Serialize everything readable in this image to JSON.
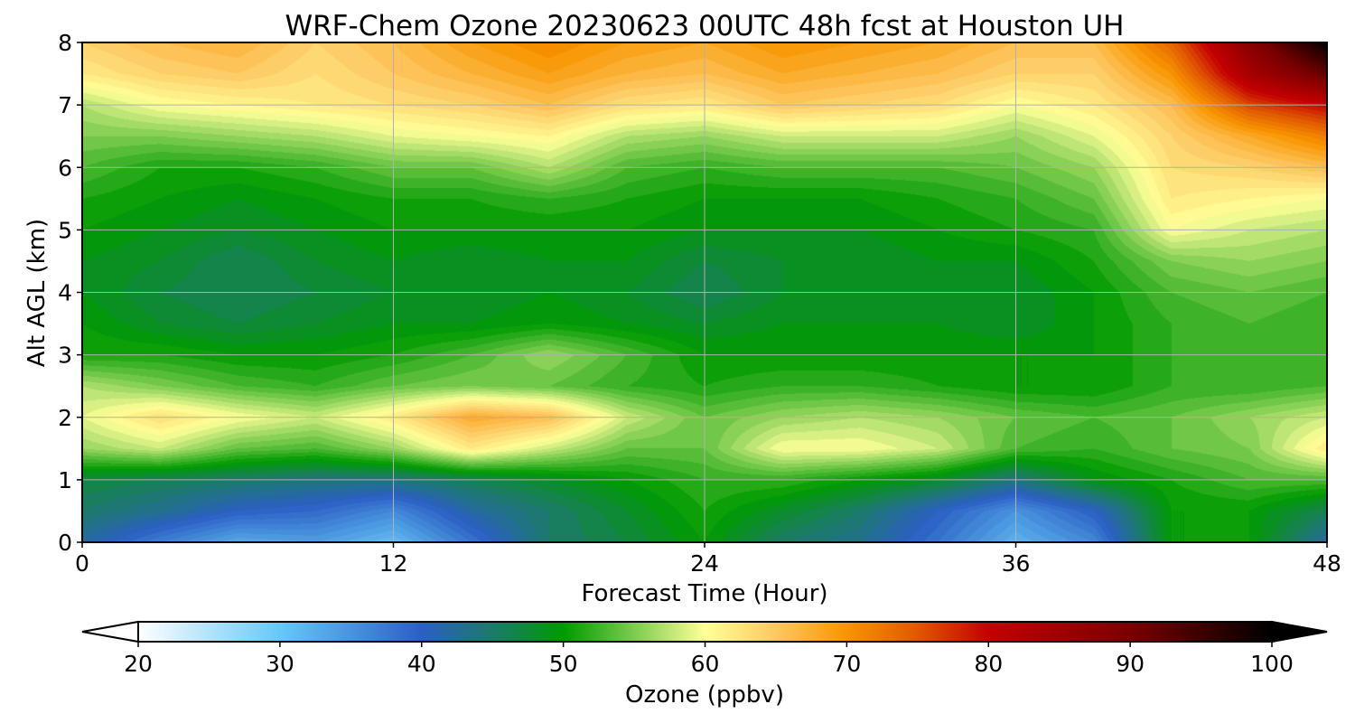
{
  "chart_data": {
    "type": "heatmap",
    "title": "WRF-Chem Ozone  20230623 00UTC 48h fcst at Houston UH",
    "xlabel": "Forecast Time (Hour)",
    "ylabel": "Alt AGL (km)",
    "xlim": [
      0,
      48
    ],
    "ylim": [
      0,
      8
    ],
    "x_ticks": [
      0,
      12,
      24,
      36,
      48
    ],
    "y_ticks": [
      0,
      1,
      2,
      3,
      4,
      5,
      6,
      7,
      8
    ],
    "grid": true,
    "colorbar": {
      "label": "Ozone  (ppbv)",
      "min": 20,
      "max": 100,
      "ticks": [
        20,
        30,
        40,
        50,
        60,
        70,
        80,
        90,
        100
      ],
      "extend": "both",
      "orientation": "horizontal",
      "colors": [
        {
          "value": 20,
          "color": "#ffffff"
        },
        {
          "value": 30,
          "color": "#66c8f8"
        },
        {
          "value": 40,
          "color": "#2b5fc4"
        },
        {
          "value": 45,
          "color": "#1c7a6a"
        },
        {
          "value": 50,
          "color": "#009a00"
        },
        {
          "value": 55,
          "color": "#7ccc50"
        },
        {
          "value": 60,
          "color": "#ffff99"
        },
        {
          "value": 65,
          "color": "#fdc862"
        },
        {
          "value": 70,
          "color": "#f89500"
        },
        {
          "value": 75,
          "color": "#e05800"
        },
        {
          "value": 80,
          "color": "#c40000"
        },
        {
          "value": 90,
          "color": "#7a0000"
        },
        {
          "value": 100,
          "color": "#000000"
        }
      ]
    },
    "grid_x_hours": [
      0,
      3,
      6,
      9,
      12,
      15,
      18,
      21,
      24,
      27,
      30,
      33,
      36,
      39,
      42,
      45,
      48
    ],
    "grid_y_km": [
      0,
      0.5,
      1,
      1.5,
      2,
      2.5,
      3,
      3.5,
      4,
      4.5,
      5,
      5.5,
      6,
      6.5,
      7,
      7.5,
      8
    ],
    "z_ppbv": [
      [
        42,
        37,
        33,
        34,
        31,
        38,
        45,
        47,
        50,
        45,
        43,
        38,
        32,
        36,
        50,
        50,
        42
      ],
      [
        45,
        43,
        40,
        39,
        36,
        42,
        45,
        48,
        51,
        48,
        45,
        40,
        35,
        40,
        50,
        50,
        46
      ],
      [
        47,
        46,
        45,
        44,
        44,
        46,
        48,
        50,
        52,
        52,
        50,
        48,
        44,
        49,
        51,
        53,
        53
      ],
      [
        56,
        58,
        54,
        53,
        56,
        62,
        58,
        54,
        54,
        60,
        60,
        58,
        53,
        52,
        54,
        55,
        62
      ],
      [
        59,
        63,
        60,
        58,
        62,
        68,
        66,
        58,
        54,
        56,
        57,
        56,
        54,
        53,
        54,
        56,
        58
      ],
      [
        57,
        55,
        53,
        52,
        54,
        55,
        54,
        52,
        51,
        52,
        52,
        51,
        50,
        50,
        52,
        52,
        53
      ],
      [
        51,
        51,
        50,
        50,
        51,
        53,
        56,
        53,
        50,
        50,
        50,
        50,
        50,
        50,
        52,
        53,
        52
      ],
      [
        50,
        48,
        47,
        48,
        49,
        49,
        50,
        49,
        48,
        49,
        49,
        49,
        48,
        50,
        52,
        53,
        52
      ],
      [
        49,
        47,
        46,
        47,
        48,
        48,
        49,
        48,
        46,
        48,
        48,
        48,
        48,
        50,
        53,
        54,
        53
      ],
      [
        49,
        48,
        46,
        48,
        49,
        48,
        49,
        49,
        47,
        48,
        48,
        49,
        49,
        51,
        55,
        56,
        55
      ],
      [
        50,
        49,
        48,
        49,
        50,
        50,
        50,
        50,
        49,
        49,
        49,
        50,
        51,
        52,
        60,
        58,
        57
      ],
      [
        51,
        50,
        49,
        50,
        51,
        51,
        52,
        51,
        50,
        50,
        50,
        51,
        52,
        54,
        62,
        61,
        60
      ],
      [
        53,
        51,
        51,
        52,
        54,
        54,
        57,
        53,
        52,
        53,
        53,
        53,
        54,
        56,
        63,
        64,
        66
      ],
      [
        55,
        55,
        56,
        57,
        59,
        60,
        61,
        57,
        56,
        58,
        58,
        58,
        56,
        59,
        64,
        68,
        72
      ],
      [
        57,
        60,
        61,
        62,
        63,
        64,
        66,
        63,
        62,
        65,
        64,
        63,
        60,
        62,
        66,
        76,
        80
      ],
      [
        62,
        64,
        65,
        63,
        65,
        67,
        69,
        67,
        66,
        68,
        67,
        66,
        64,
        64,
        70,
        84,
        92
      ],
      [
        64,
        66,
        67,
        64,
        66,
        69,
        71,
        69,
        68,
        70,
        69,
        68,
        66,
        66,
        74,
        88,
        100
      ]
    ]
  }
}
